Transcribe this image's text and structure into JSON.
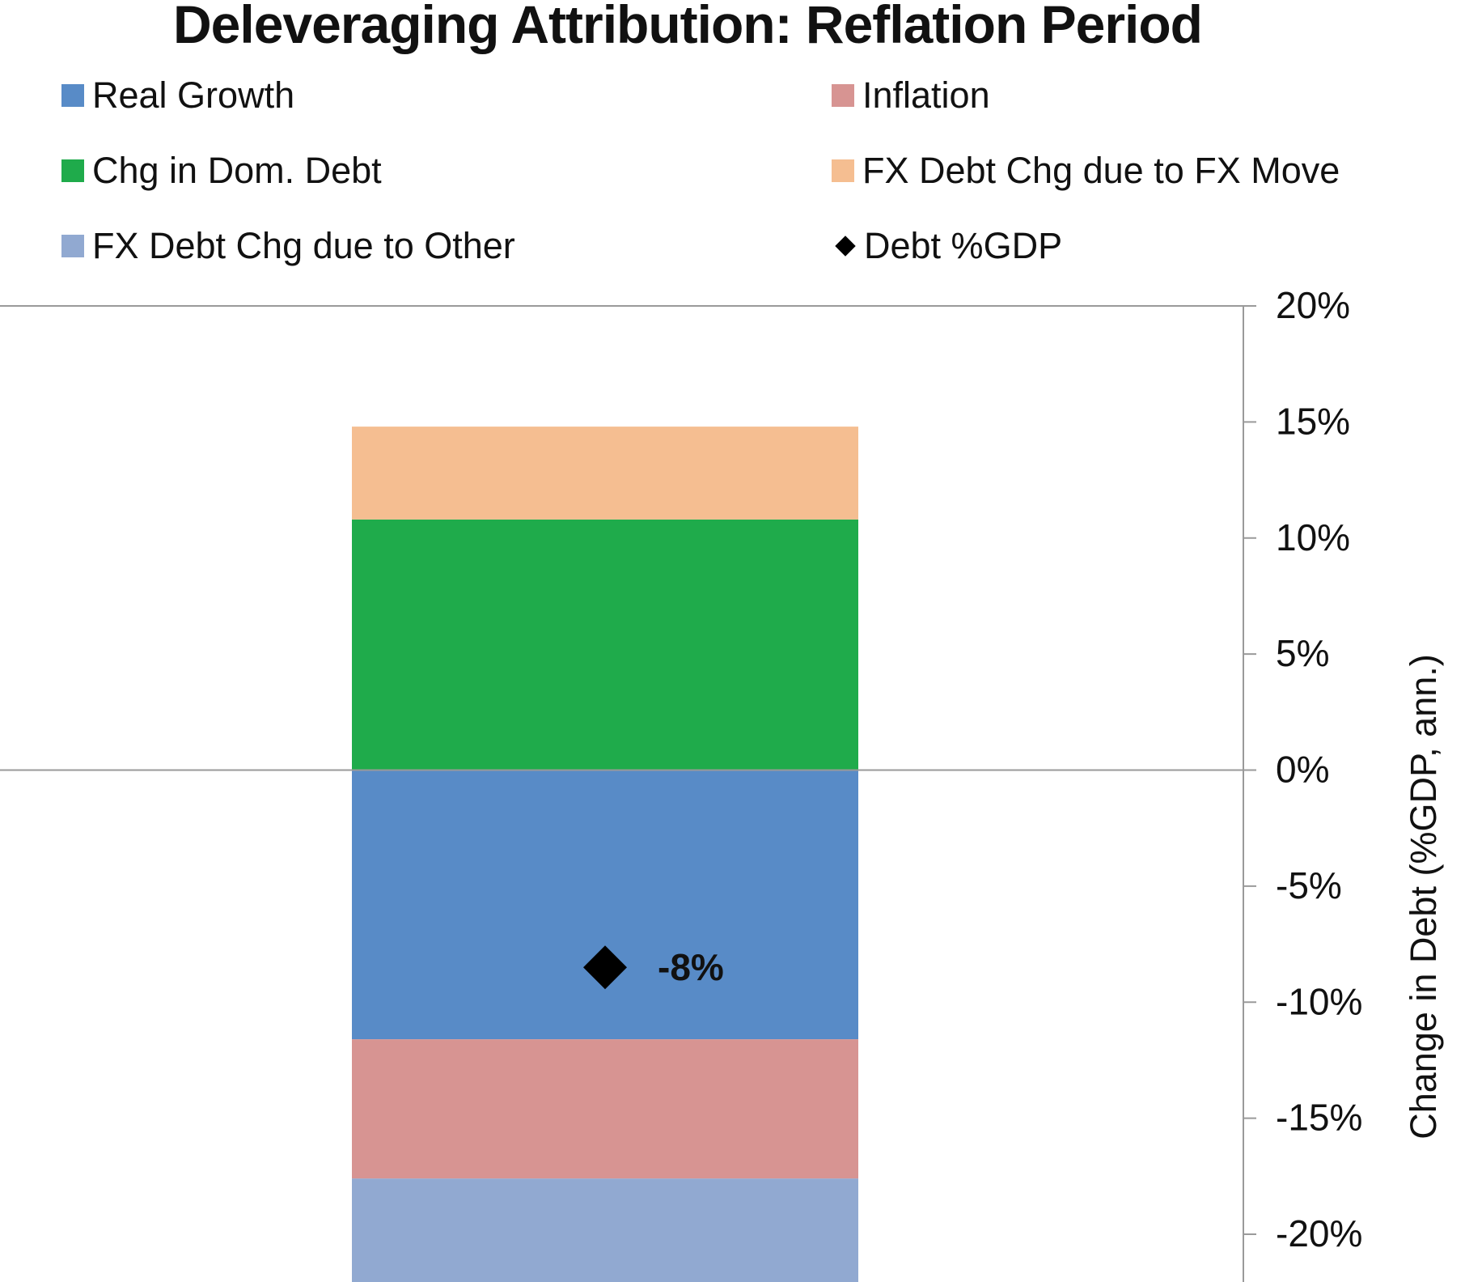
{
  "chart_data": {
    "type": "bar",
    "stacked": true,
    "title": "Deleveraging Attribution: Reflation Period",
    "ylabel": "Change in Debt (%GDP, ann.)",
    "xlabel": "",
    "ylim": [
      -20,
      20
    ],
    "yticks": [
      20,
      15,
      10,
      5,
      0,
      -5,
      -10,
      -15,
      -20
    ],
    "ytick_labels": [
      "20%",
      "15%",
      "10%",
      "5%",
      "0%",
      "-5%",
      "-10%",
      "-15%",
      "-20%"
    ],
    "y_axis_side": "right",
    "grid": false,
    "legend_position": "top",
    "series": [
      {
        "name": "Real Growth",
        "value": -11.6,
        "color": "#588bc7",
        "legend_marker": "square"
      },
      {
        "name": "Inflation",
        "value": -6.0,
        "color": "#d79492",
        "legend_marker": "square"
      },
      {
        "name": "Chg in Dom. Debt",
        "value": 10.8,
        "color": "#1fab4b",
        "legend_marker": "square"
      },
      {
        "name": "FX Debt Chg due to FX Move",
        "value": 4.0,
        "color": "#f5be91",
        "legend_marker": "square"
      },
      {
        "name": "FX Debt Chg due to Other",
        "value": -4.7,
        "color": "#91a9d1",
        "legend_marker": "square"
      },
      {
        "name": "Debt %GDP",
        "value": -8.5,
        "color": "#000000",
        "legend_marker": "diamond",
        "kind": "marker"
      }
    ],
    "data_labels": [
      {
        "series": "Debt %GDP",
        "text": "-8%"
      }
    ]
  }
}
